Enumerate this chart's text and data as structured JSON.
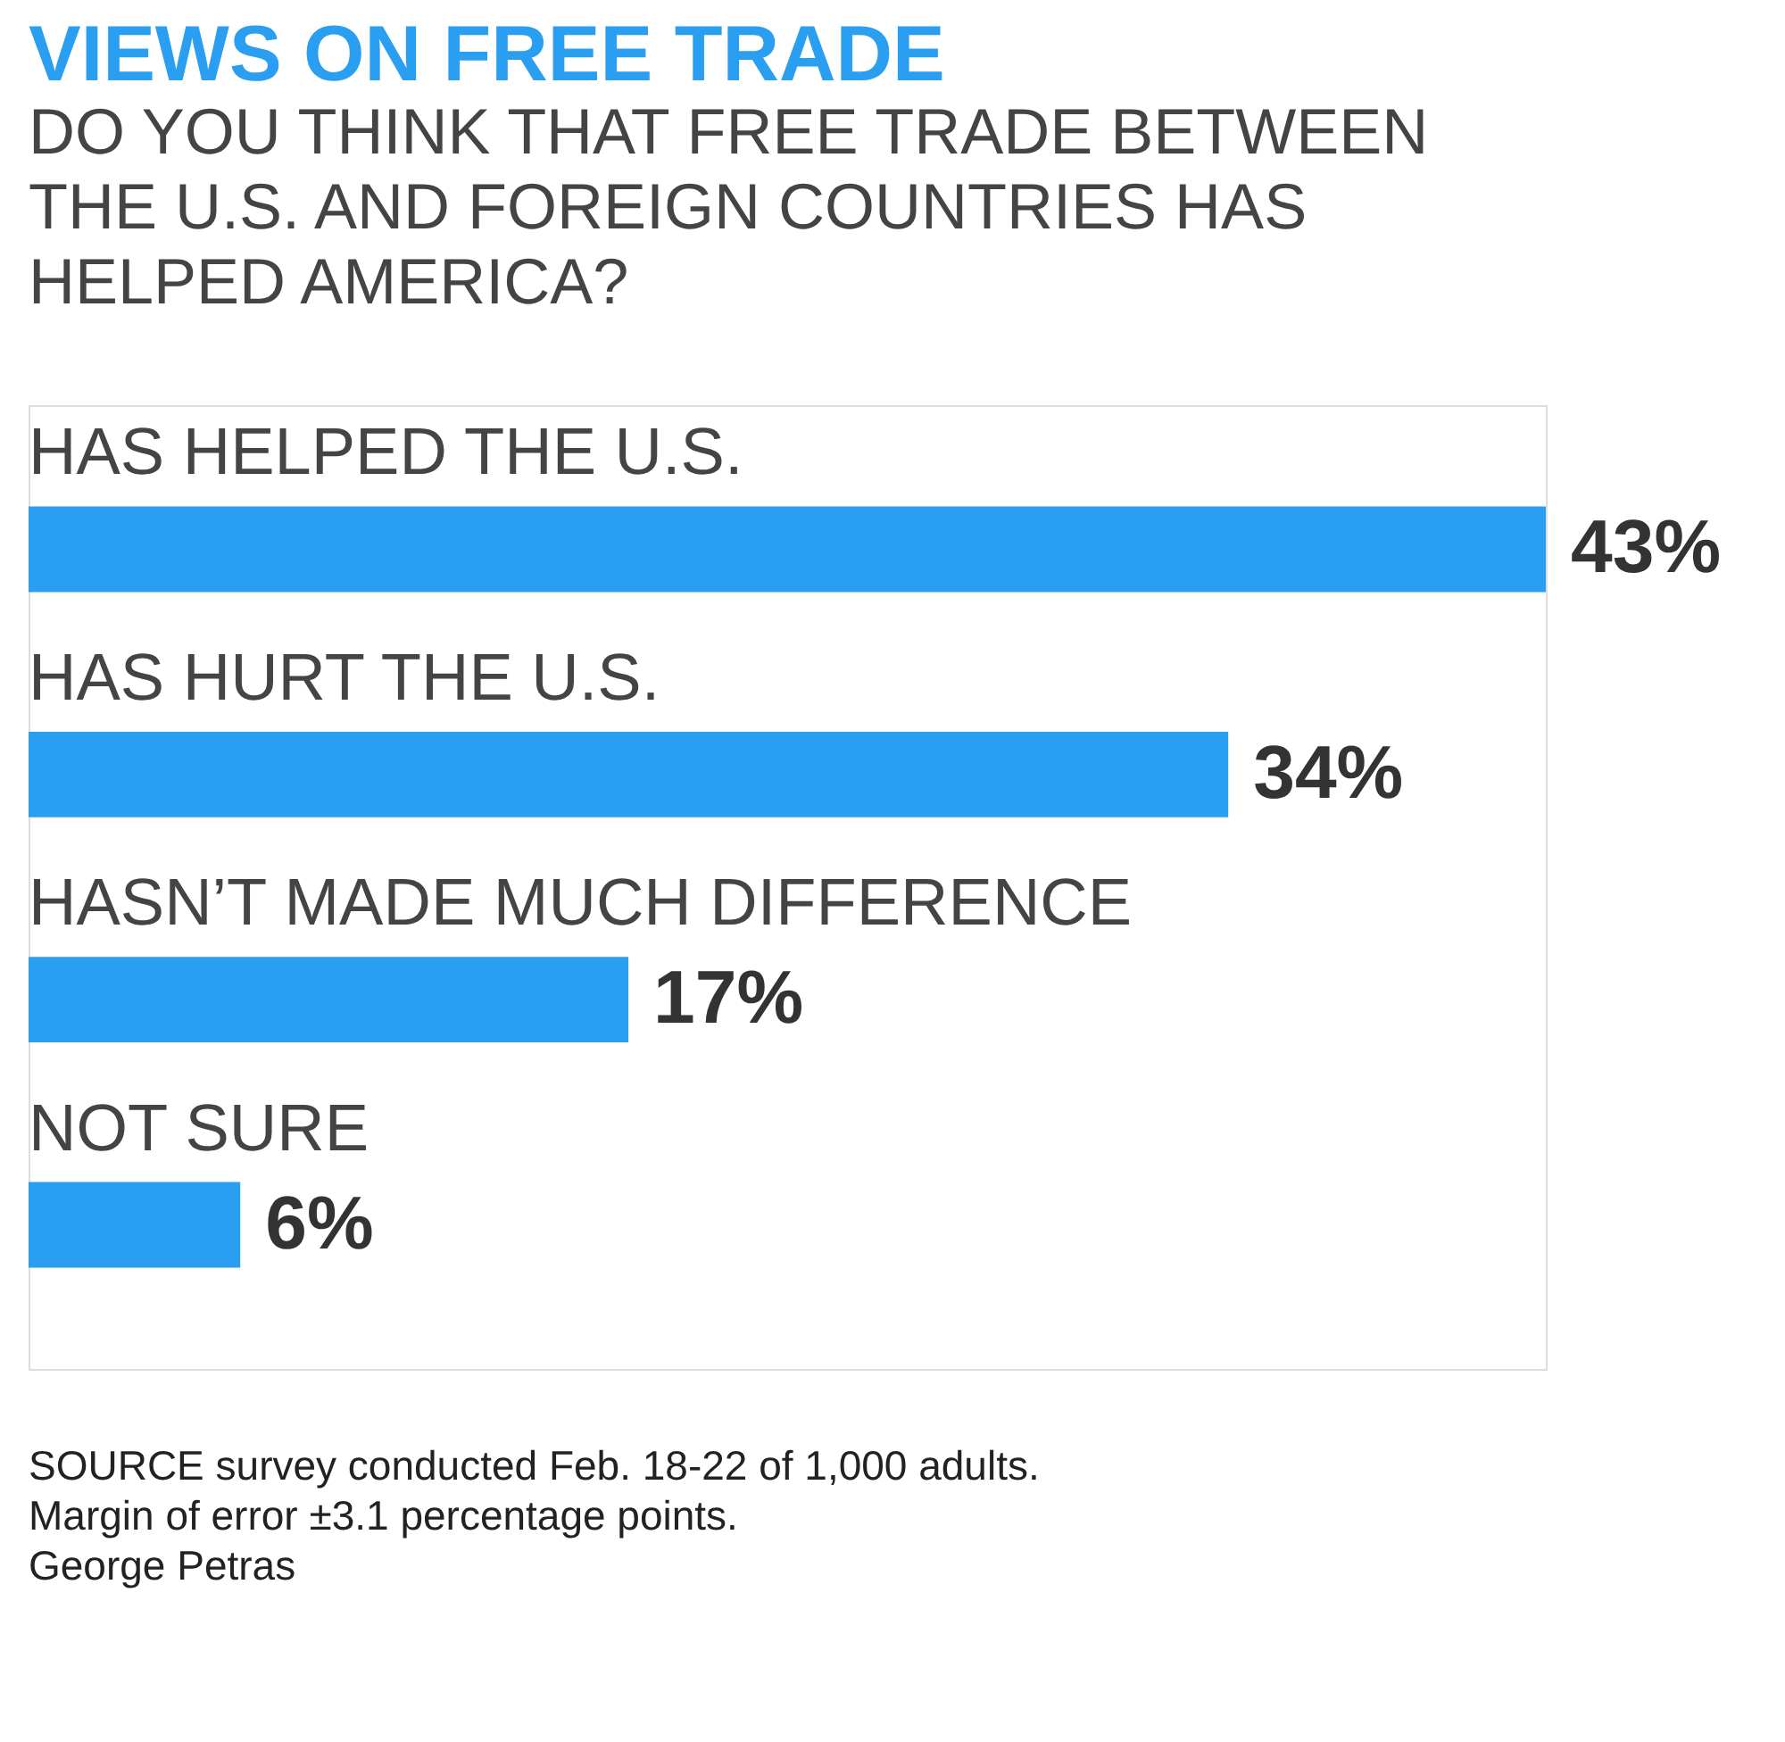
{
  "chart_data": {
    "type": "bar",
    "orientation": "horizontal",
    "title": "VIEWS ON FREE TRADE",
    "subtitle": [
      "DO YOU THINK THAT FREE TRADE BETWEEN",
      "THE U.S. AND FOREIGN COUNTRIES HAS",
      "HELPED AMERICA?"
    ],
    "categories": [
      "HAS HELPED THE U.S.",
      "HAS HURT THE U.S.",
      "HASN’T MADE MUCH DIFFERENCE",
      "NOT SURE"
    ],
    "values": [
      43,
      34,
      17,
      6
    ],
    "value_labels": [
      "43%",
      "34%",
      "17%",
      "6%"
    ],
    "color": "#2a9ff2",
    "grid": false,
    "annotations": [
      "SOURCE survey conducted Feb. 18-22 of 1,000 adults.",
      "Margin of error ±3.1 percentage points.",
      "George Petras"
    ]
  }
}
